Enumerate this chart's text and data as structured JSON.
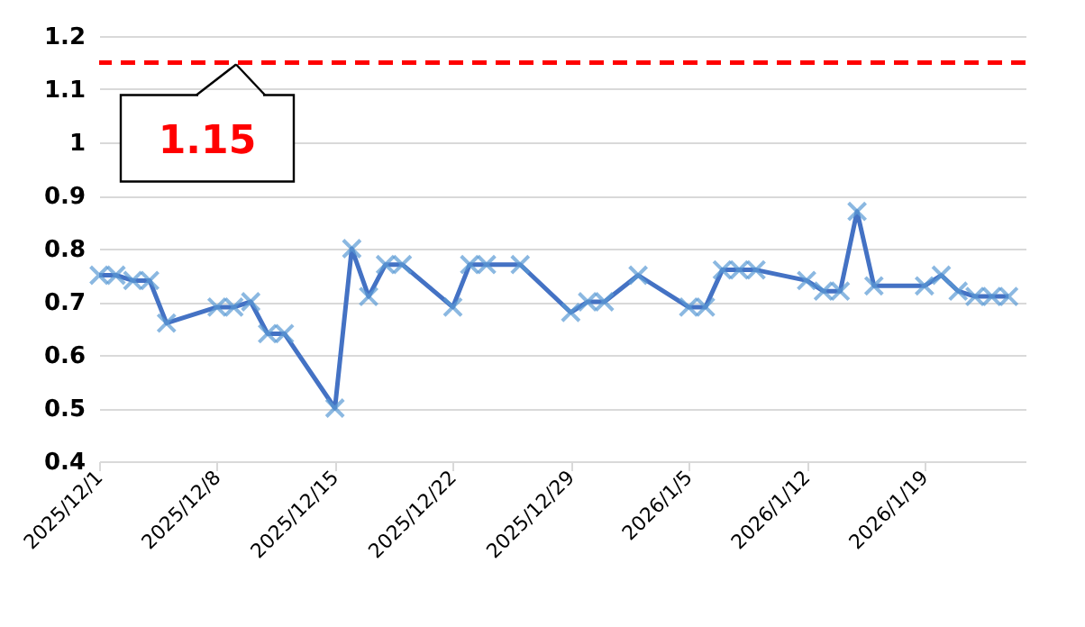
{
  "chart_data": {
    "type": "line",
    "x": [
      "2025-12-01",
      "2025-12-02",
      "2025-12-03",
      "2025-12-04",
      "2025-12-05",
      "2025-12-08",
      "2025-12-09",
      "2025-12-10",
      "2025-12-11",
      "2025-12-12",
      "2025-12-15",
      "2025-12-16",
      "2025-12-17",
      "2025-12-18",
      "2025-12-19",
      "2025-12-22",
      "2025-12-23",
      "2025-12-24",
      "2025-12-26",
      "2025-12-29",
      "2025-12-30",
      "2025-12-31",
      "2026-01-02",
      "2026-01-05",
      "2026-01-06",
      "2026-01-07",
      "2026-01-08",
      "2026-01-09",
      "2026-01-12",
      "2026-01-13",
      "2026-01-14",
      "2026-01-15",
      "2026-01-16",
      "2026-01-19",
      "2026-01-20",
      "2026-01-21",
      "2026-01-22",
      "2026-01-23",
      "2026-01-24"
    ],
    "series": [
      {
        "color": "#4472c4",
        "values": [
          0.75,
          0.75,
          0.74,
          0.74,
          0.66,
          0.69,
          0.69,
          0.7,
          0.64,
          0.64,
          0.5,
          0.8,
          0.71,
          0.77,
          0.77,
          0.69,
          0.77,
          0.77,
          0.77,
          0.68,
          0.7,
          0.7,
          0.75,
          0.69,
          0.69,
          0.76,
          0.76,
          0.76,
          0.74,
          0.72,
          0.72,
          0.87,
          0.73,
          0.73,
          0.75,
          0.72,
          0.71,
          0.71,
          0.71
        ]
      }
    ],
    "xlim": [
      "2025-12-01",
      "2026-01-25"
    ],
    "xticks": [
      {
        "value": "2025-12-01",
        "label": "2025/12/1"
      },
      {
        "value": "2025-12-08",
        "label": "2025/12/8"
      },
      {
        "value": "2025-12-15",
        "label": "2025/12/15"
      },
      {
        "value": "2025-12-22",
        "label": "2025/12/22"
      },
      {
        "value": "2025-12-29",
        "label": "2025/12/29"
      },
      {
        "value": "2026-01-05",
        "label": "2026/1/5"
      },
      {
        "value": "2026-01-12",
        "label": "2026/1/12"
      },
      {
        "value": "2026-01-19",
        "label": "2026/1/19"
      }
    ],
    "ylim": [
      0.4,
      1.2
    ],
    "yticks": [
      0.4,
      0.5,
      0.6,
      0.7,
      0.8,
      0.9,
      {
        "value": 1,
        "label": "1"
      },
      1.1,
      1.2
    ],
    "ref_lines": [
      {
        "axis": "y",
        "value": 1.15,
        "label": "1.15",
        "color": "#ff0000",
        "line_style": "dashed"
      }
    ],
    "grid": "y",
    "marker": "cross",
    "line_style": "solid"
  }
}
